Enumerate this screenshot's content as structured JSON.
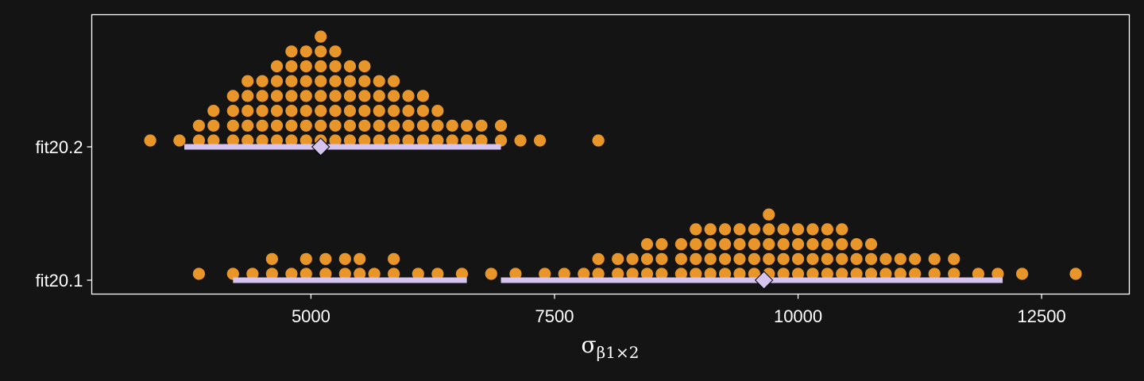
{
  "chart_data": {
    "type": "dotplot",
    "xlabel": {
      "symbol": "σ",
      "subscript": "β1×2"
    },
    "xlim": [
      2750,
      13400
    ],
    "x_ticks": [
      5000,
      7500,
      10000,
      12500
    ],
    "x_tick_labels": [
      "5000",
      "7500",
      "10000",
      "12500"
    ],
    "categories": [
      "fit20.1",
      "fit20.2"
    ],
    "dot_bin_width": 160,
    "grid": false,
    "legend": "none",
    "colors": {
      "dots": "#e8962a",
      "interval": "#d4c4ef",
      "background": "#141414",
      "panel_border": "#ffffff"
    },
    "series": [
      {
        "category": "fit20.1",
        "mode": 9650,
        "intervals": [
          [
            4200,
            6600
          ],
          [
            6950,
            12100
          ]
        ],
        "stacks": [
          [
            3850,
            1
          ],
          [
            4200,
            1
          ],
          [
            4400,
            1
          ],
          [
            4600,
            2
          ],
          [
            4800,
            1
          ],
          [
            4950,
            2
          ],
          [
            5150,
            2
          ],
          [
            5350,
            2
          ],
          [
            5500,
            2
          ],
          [
            5650,
            1
          ],
          [
            5850,
            2
          ],
          [
            6100,
            1
          ],
          [
            6300,
            1
          ],
          [
            6550,
            1
          ],
          [
            6850,
            1
          ],
          [
            7100,
            1
          ],
          [
            7400,
            1
          ],
          [
            7600,
            1
          ],
          [
            7800,
            1
          ],
          [
            7950,
            2
          ],
          [
            8150,
            2
          ],
          [
            8300,
            2
          ],
          [
            8450,
            3
          ],
          [
            8600,
            3
          ],
          [
            8800,
            3
          ],
          [
            8950,
            4
          ],
          [
            9100,
            4
          ],
          [
            9250,
            4
          ],
          [
            9400,
            4
          ],
          [
            9550,
            4
          ],
          [
            9700,
            5
          ],
          [
            9850,
            4
          ],
          [
            10000,
            4
          ],
          [
            10150,
            4
          ],
          [
            10300,
            4
          ],
          [
            10450,
            4
          ],
          [
            10600,
            3
          ],
          [
            10750,
            3
          ],
          [
            10900,
            2
          ],
          [
            11050,
            2
          ],
          [
            11200,
            2
          ],
          [
            11400,
            2
          ],
          [
            11600,
            2
          ],
          [
            11850,
            1
          ],
          [
            12050,
            1
          ],
          [
            12300,
            1
          ],
          [
            12850,
            1
          ]
        ]
      },
      {
        "category": "fit20.2",
        "mode": 5100,
        "intervals": [
          [
            3700,
            6950
          ]
        ],
        "stacks": [
          [
            3350,
            1
          ],
          [
            3650,
            1
          ],
          [
            3850,
            2
          ],
          [
            4000,
            3
          ],
          [
            4200,
            4
          ],
          [
            4350,
            5
          ],
          [
            4500,
            5
          ],
          [
            4650,
            6
          ],
          [
            4800,
            7
          ],
          [
            4950,
            7
          ],
          [
            5100,
            8
          ],
          [
            5250,
            7
          ],
          [
            5400,
            6
          ],
          [
            5550,
            6
          ],
          [
            5700,
            5
          ],
          [
            5850,
            5
          ],
          [
            6000,
            4
          ],
          [
            6150,
            4
          ],
          [
            6300,
            3
          ],
          [
            6450,
            2
          ],
          [
            6600,
            2
          ],
          [
            6750,
            2
          ],
          [
            6950,
            2
          ],
          [
            7150,
            1
          ],
          [
            7350,
            1
          ],
          [
            7950,
            1
          ]
        ]
      }
    ]
  }
}
